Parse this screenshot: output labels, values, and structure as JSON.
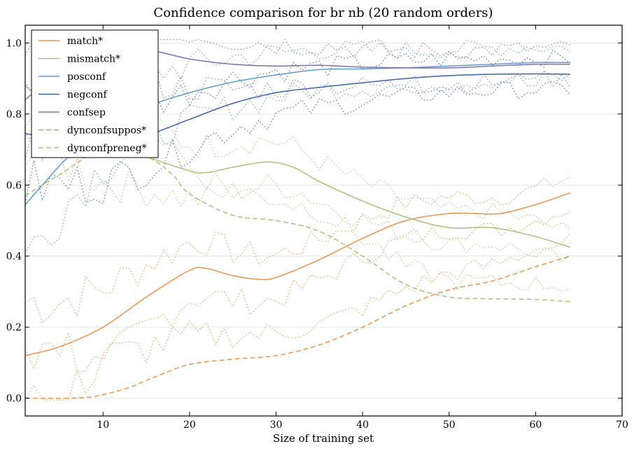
{
  "chart_data": {
    "type": "line",
    "title": "Confidence comparison for br nb (20 random orders)",
    "xlabel": "Size of training set",
    "ylabel": "",
    "xlim": [
      1,
      70
    ],
    "ylim": [
      -0.05,
      1.05
    ],
    "xticks": [
      10,
      20,
      30,
      40,
      50,
      60,
      70
    ],
    "yticks": [
      0.0,
      0.2,
      0.4,
      0.6,
      0.8,
      1.0
    ],
    "xtick_labels": [
      "10",
      "20",
      "30",
      "40",
      "50",
      "60",
      "70"
    ],
    "ytick_labels": [
      "0.0",
      "0.2",
      "0.4",
      "0.6",
      "0.8",
      "1.0"
    ],
    "grid": "horizontal",
    "legend_position": "top-left",
    "series": [
      {
        "name": "match*",
        "color": "#e8944f",
        "style": "solid",
        "x": [
          1,
          5,
          10,
          15,
          20,
          22,
          25,
          28,
          30,
          35,
          40,
          45,
          50,
          53,
          56,
          60,
          64
        ],
        "y": [
          0.12,
          0.145,
          0.2,
          0.285,
          0.36,
          0.365,
          0.345,
          0.335,
          0.34,
          0.39,
          0.45,
          0.5,
          0.52,
          0.52,
          0.52,
          0.545,
          0.578
        ]
      },
      {
        "name": "mismatch*",
        "color": "#a9bf7f",
        "style": "solid",
        "x": [
          1,
          5,
          10,
          15,
          20,
          22,
          25,
          29,
          32,
          35,
          40,
          45,
          50,
          55,
          60,
          64
        ],
        "y": [
          0.88,
          0.8,
          0.72,
          0.68,
          0.64,
          0.635,
          0.65,
          0.665,
          0.65,
          0.61,
          0.555,
          0.51,
          0.48,
          0.48,
          0.455,
          0.425
        ]
      },
      {
        "name": "posconf",
        "color": "#5f9ac9",
        "style": "solid",
        "x": [
          1,
          3,
          6,
          10,
          15,
          20,
          25,
          30,
          35,
          40,
          45,
          50,
          55,
          60,
          64
        ],
        "y": [
          0.545,
          0.6,
          0.68,
          0.76,
          0.82,
          0.86,
          0.89,
          0.91,
          0.925,
          0.927,
          0.93,
          0.935,
          0.94,
          0.945,
          0.945
        ]
      },
      {
        "name": "negconf",
        "color": "#3f63a7",
        "style": "solid",
        "x": [
          1,
          5,
          10,
          15,
          20,
          25,
          30,
          35,
          40,
          45,
          50,
          55,
          60,
          64
        ],
        "y": [
          0.745,
          0.73,
          0.715,
          0.74,
          0.785,
          0.83,
          0.86,
          0.875,
          0.888,
          0.9,
          0.908,
          0.912,
          0.913,
          0.912
        ]
      },
      {
        "name": "confsep",
        "color": "#7c72b0",
        "style": "solid",
        "x": [
          1,
          3,
          6,
          10,
          15,
          20,
          25,
          30,
          35,
          40,
          45,
          50,
          55,
          60,
          64
        ],
        "y": [
          0.84,
          0.88,
          0.93,
          0.97,
          0.98,
          0.955,
          0.94,
          0.935,
          0.937,
          0.932,
          0.93,
          0.93,
          0.935,
          0.94,
          0.94
        ]
      },
      {
        "name": "dynconfsuppos*",
        "color": "#e8944f",
        "style": "dashed",
        "x": [
          1,
          5,
          8,
          10,
          13,
          16,
          20,
          25,
          30,
          35,
          40,
          45,
          50,
          55,
          60,
          64
        ],
        "y": [
          0.0,
          0.0,
          0.002,
          0.01,
          0.03,
          0.06,
          0.095,
          0.11,
          0.12,
          0.15,
          0.2,
          0.26,
          0.305,
          0.33,
          0.37,
          0.4
        ]
      },
      {
        "name": "dynconfpreneg*",
        "color": "#a9bf7f",
        "style": "dashed",
        "x": [
          1,
          5,
          10,
          15,
          18,
          20,
          25,
          30,
          35,
          40,
          45,
          50,
          55,
          60,
          64
        ],
        "y": [
          0.57,
          0.63,
          0.7,
          0.68,
          0.63,
          0.575,
          0.515,
          0.5,
          0.47,
          0.4,
          0.32,
          0.285,
          0.28,
          0.278,
          0.272
        ]
      }
    ]
  }
}
